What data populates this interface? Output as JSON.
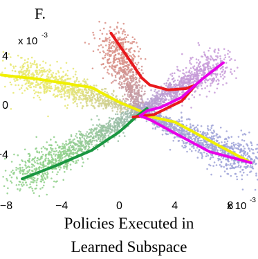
{
  "panel_label": "F.",
  "caption_line1": "Policies Executed in",
  "caption_line2": "Learned Subspace",
  "chart_data": {
    "type": "scatter",
    "title": "",
    "xlim": [
      -8.5,
      10
    ],
    "ylim": [
      -7,
      6.8
    ],
    "x_ticks": [
      -8,
      -4,
      0,
      4,
      8
    ],
    "y_ticks": [
      4,
      0,
      -4
    ],
    "x_scale_label": "x 10",
    "x_scale_exp": "-3",
    "y_scale_label": "x 10",
    "y_scale_exp": "-3",
    "cloud_arms": [
      {
        "from": [
          1.5,
          -0.5
        ],
        "to": [
          -7.3,
          2.6
        ],
        "color": "#e8e870",
        "n": 900
      },
      {
        "from": [
          1.5,
          -0.5
        ],
        "to": [
          -7,
          -5.9
        ],
        "color": "#8fd08a",
        "n": 1000
      },
      {
        "from": [
          1.5,
          -0.5
        ],
        "to": [
          -0.5,
          5.5
        ],
        "color": "#d98f86",
        "n": 700
      },
      {
        "from": [
          1.5,
          -0.5
        ],
        "to": [
          7.2,
          3.4
        ],
        "color": "#c79ad8",
        "n": 900
      },
      {
        "from": [
          1.5,
          -0.5
        ],
        "to": [
          9.5,
          -4.8
        ],
        "color": "#9ea2d8",
        "n": 1000
      }
    ],
    "series": [
      {
        "color": "#f0f000",
        "x": [
          -8.5,
          -6,
          -2,
          0,
          1.5,
          2,
          4,
          6,
          9.5
        ],
        "y": [
          2.4,
          2.1,
          1.4,
          0.2,
          -0.5,
          -0.9,
          -1.4,
          -2.6,
          -4.7
        ]
      },
      {
        "color": "#1a9641",
        "x": [
          -7,
          -4.5,
          -2,
          0,
          1.2,
          2
        ],
        "y": [
          -6,
          -4.9,
          -3.7,
          -2.2,
          -1,
          -0.3
        ]
      },
      {
        "color": "#e8181c",
        "x": [
          -0.6,
          0.2,
          1,
          1.6,
          2.2,
          3.5,
          4.8,
          5.5,
          4.5,
          2.5,
          1
        ],
        "y": [
          5.8,
          4.5,
          3.2,
          2.2,
          1.6,
          1.2,
          1.3,
          1.6,
          0.3,
          -0.8,
          -1
        ]
      },
      {
        "color": "#e800e8",
        "x": [
          7.5,
          6,
          4.5,
          3,
          2,
          1.5,
          2.2,
          4,
          6.5,
          9.5
        ],
        "y": [
          3.4,
          2.1,
          0.6,
          -0.2,
          -0.5,
          -0.9,
          -1.2,
          -2.3,
          -3.8,
          -4.7
        ]
      }
    ]
  }
}
